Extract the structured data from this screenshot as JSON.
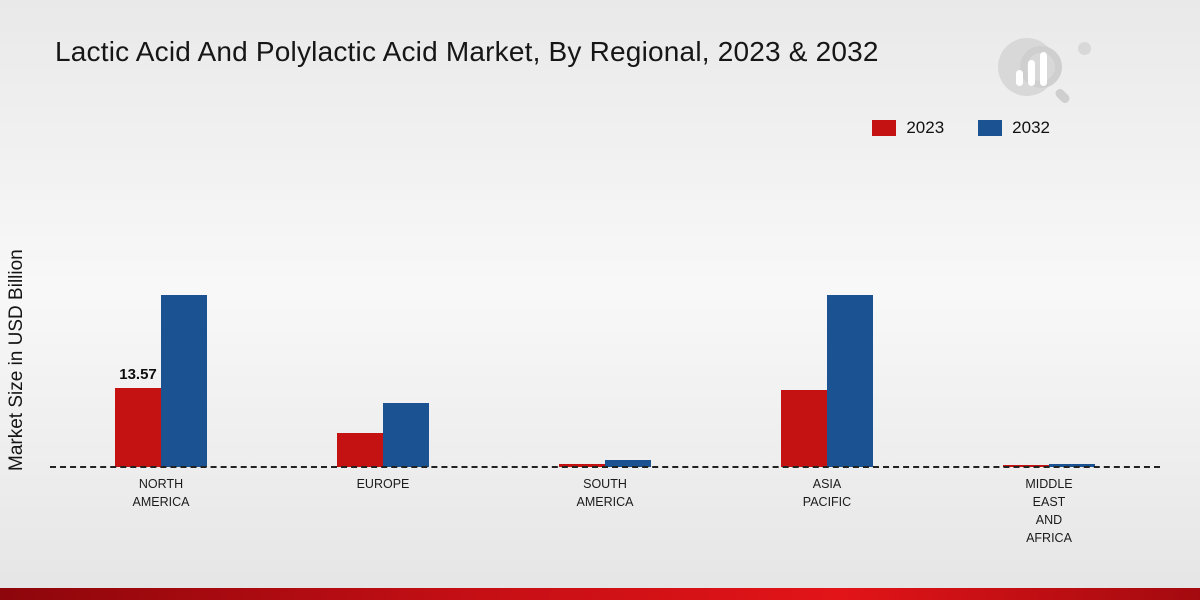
{
  "chart_data": {
    "type": "bar",
    "title": "Lactic Acid And Polylactic Acid Market, By Regional, 2023 & 2032",
    "ylabel": "Market Size in USD Billion",
    "xlabel": "",
    "ylim": [
      0,
      30
    ],
    "grid": false,
    "legend_position": "top-right",
    "baseline_style": "dashed",
    "categories": [
      "NORTH AMERICA",
      "EUROPE",
      "SOUTH AMERICA",
      "ASIA PACIFIC",
      "MIDDLE EAST AND AFRICA"
    ],
    "series": [
      {
        "name": "2023",
        "color": "#c41111",
        "values": [
          13.57,
          5.8,
          0.5,
          13.2,
          0.3
        ]
      },
      {
        "name": "2032",
        "color": "#1b5291",
        "values": [
          29.6,
          11.0,
          1.2,
          29.6,
          0.55
        ]
      }
    ],
    "data_labels": [
      {
        "series": "2023",
        "category": "NORTH AMERICA",
        "text": "13.57"
      }
    ]
  },
  "branding": {
    "footer_accent_color": "#c50f15",
    "logo_name": "market-research-logo"
  }
}
